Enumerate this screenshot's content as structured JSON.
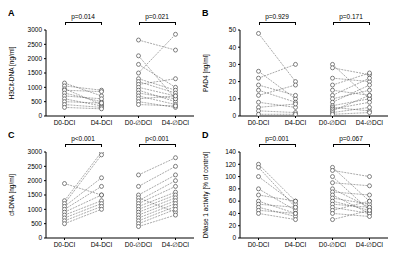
{
  "chart_data": [
    {
      "type": "paired_line",
      "title": "A",
      "y_label": "H3Cit-DNA [ng/ml]",
      "categories": [
        "D0-DCI",
        "D4-DCI",
        "D0-∅DCI",
        "D4-∅DCI"
      ],
      "ylim": [
        0,
        3000
      ],
      "yticks": [
        0,
        500,
        1000,
        1500,
        2000,
        2500,
        3000
      ],
      "annotations": [
        "p=0.014",
        "p=0.021"
      ],
      "marker": "open_circle",
      "line_style": "dashed",
      "series": [
        {
          "values": [
            1150,
            700,
            null,
            null
          ]
        },
        {
          "values": [
            1050,
            900,
            null,
            null
          ]
        },
        {
          "values": [
            950,
            400,
            null,
            null
          ]
        },
        {
          "values": [
            900,
            850,
            null,
            null
          ]
        },
        {
          "values": [
            800,
            500,
            null,
            null
          ]
        },
        {
          "values": [
            700,
            600,
            null,
            null
          ]
        },
        {
          "values": [
            600,
            350,
            null,
            null
          ]
        },
        {
          "values": [
            500,
            450,
            null,
            null
          ]
        },
        {
          "values": [
            400,
            300,
            null,
            null
          ]
        },
        {
          "values": [
            300,
            250,
            null,
            null
          ]
        },
        {
          "values": [
            null,
            null,
            2650,
            2300
          ]
        },
        {
          "values": [
            null,
            null,
            2100,
            600
          ]
        },
        {
          "values": [
            null,
            null,
            1800,
            1000
          ]
        },
        {
          "values": [
            null,
            null,
            1500,
            2850
          ]
        },
        {
          "values": [
            null,
            null,
            1300,
            900
          ]
        },
        {
          "values": [
            null,
            null,
            1200,
            800
          ]
        },
        {
          "values": [
            null,
            null,
            1100,
            1300
          ]
        },
        {
          "values": [
            null,
            null,
            1000,
            700
          ]
        },
        {
          "values": [
            null,
            null,
            900,
            500
          ]
        },
        {
          "values": [
            null,
            null,
            800,
            600
          ]
        },
        {
          "values": [
            null,
            null,
            700,
            400
          ]
        },
        {
          "values": [
            null,
            null,
            600,
            700
          ]
        },
        {
          "values": [
            null,
            null,
            500,
            300
          ]
        },
        {
          "values": [
            null,
            null,
            400,
            350
          ]
        }
      ]
    },
    {
      "type": "paired_line",
      "title": "B",
      "y_label": "PAD4 [ng/ml]",
      "categories": [
        "D0-DCI",
        "D4-DCI",
        "D0-∅DCI",
        "D4-∅DCI"
      ],
      "ylim": [
        0,
        50
      ],
      "yticks": [
        0,
        10,
        20,
        30,
        40,
        50
      ],
      "annotations": [
        "p=0.929",
        "p=0.171"
      ],
      "marker": "open_circle",
      "line_style": "dashed",
      "series": [
        {
          "values": [
            48,
            20,
            null,
            null
          ]
        },
        {
          "values": [
            26,
            10,
            null,
            null
          ]
        },
        {
          "values": [
            22,
            30,
            null,
            null
          ]
        },
        {
          "values": [
            18,
            12,
            null,
            null
          ]
        },
        {
          "values": [
            15,
            8,
            null,
            null
          ]
        },
        {
          "values": [
            12,
            18,
            null,
            null
          ]
        },
        {
          "values": [
            8,
            5,
            null,
            null
          ]
        },
        {
          "values": [
            5,
            7,
            null,
            null
          ]
        },
        {
          "values": [
            3,
            2,
            null,
            null
          ]
        },
        {
          "values": [
            1,
            1,
            null,
            null
          ]
        },
        {
          "values": [
            null,
            null,
            30,
            10
          ]
        },
        {
          "values": [
            null,
            null,
            28,
            24
          ]
        },
        {
          "values": [
            null,
            null,
            22,
            20
          ]
        },
        {
          "values": [
            null,
            null,
            18,
            25
          ]
        },
        {
          "values": [
            null,
            null,
            15,
            12
          ]
        },
        {
          "values": [
            null,
            null,
            12,
            22
          ]
        },
        {
          "values": [
            null,
            null,
            10,
            15
          ]
        },
        {
          "values": [
            null,
            null,
            8,
            18
          ]
        },
        {
          "values": [
            null,
            null,
            6,
            10
          ]
        },
        {
          "values": [
            null,
            null,
            5,
            3
          ]
        },
        {
          "values": [
            null,
            null,
            4,
            8
          ]
        },
        {
          "values": [
            null,
            null,
            3,
            12
          ]
        },
        {
          "values": [
            null,
            null,
            2,
            5
          ]
        },
        {
          "values": [
            null,
            null,
            1,
            2
          ]
        }
      ]
    },
    {
      "type": "paired_line",
      "title": "C",
      "y_label": "cf-DNA [ng/ml]",
      "categories": [
        "D0-DCI",
        "D4-DCI",
        "D0-∅DCI",
        "D4-∅DCI"
      ],
      "ylim": [
        0,
        3000
      ],
      "yticks": [
        0,
        500,
        1000,
        1500,
        2000,
        2500,
        3000
      ],
      "annotations": [
        "p<0.001",
        "p<0.001"
      ],
      "marker": "open_circle",
      "line_style": "dashed",
      "series": [
        {
          "values": [
            1900,
            1500,
            null,
            null
          ]
        },
        {
          "values": [
            1300,
            3000,
            null,
            null
          ]
        },
        {
          "values": [
            1200,
            2900,
            null,
            null
          ]
        },
        {
          "values": [
            1100,
            2100,
            null,
            null
          ]
        },
        {
          "values": [
            1000,
            1800,
            null,
            null
          ]
        },
        {
          "values": [
            900,
            1500,
            null,
            null
          ]
        },
        {
          "values": [
            800,
            1300,
            null,
            null
          ]
        },
        {
          "values": [
            700,
            1200,
            null,
            null
          ]
        },
        {
          "values": [
            600,
            1100,
            null,
            null
          ]
        },
        {
          "values": [
            500,
            1000,
            null,
            null
          ]
        },
        {
          "values": [
            null,
            null,
            2200,
            2800
          ]
        },
        {
          "values": [
            null,
            null,
            1800,
            2500
          ]
        },
        {
          "values": [
            null,
            null,
            1500,
            2200
          ]
        },
        {
          "values": [
            null,
            null,
            1400,
            900
          ]
        },
        {
          "values": [
            null,
            null,
            1300,
            2000
          ]
        },
        {
          "values": [
            null,
            null,
            1200,
            1800
          ]
        },
        {
          "values": [
            null,
            null,
            1100,
            1600
          ]
        },
        {
          "values": [
            null,
            null,
            1000,
            1500
          ]
        },
        {
          "values": [
            null,
            null,
            900,
            1400
          ]
        },
        {
          "values": [
            null,
            null,
            800,
            1300
          ]
        },
        {
          "values": [
            null,
            null,
            700,
            1200
          ]
        },
        {
          "values": [
            null,
            null,
            600,
            1100
          ]
        },
        {
          "values": [
            null,
            null,
            500,
            1000
          ]
        },
        {
          "values": [
            null,
            null,
            400,
            800
          ]
        }
      ]
    },
    {
      "type": "paired_line",
      "title": "D",
      "y_label": "DNase 1 activity [% of control]",
      "categories": [
        "D0-DCI",
        "D4-DCI",
        "D0-∅DCI",
        "D4-∅DCI"
      ],
      "ylim": [
        0,
        140
      ],
      "yticks": [
        0,
        20,
        40,
        60,
        80,
        100,
        120,
        140
      ],
      "annotations": [
        "p=0.001",
        "p=0.067"
      ],
      "marker": "open_circle",
      "line_style": "dashed",
      "series": [
        {
          "values": [
            120,
            60,
            null,
            null
          ]
        },
        {
          "values": [
            115,
            50,
            null,
            null
          ]
        },
        {
          "values": [
            100,
            55,
            null,
            null
          ]
        },
        {
          "values": [
            80,
            45,
            null,
            null
          ]
        },
        {
          "values": [
            70,
            60,
            null,
            null
          ]
        },
        {
          "values": [
            60,
            40,
            null,
            null
          ]
        },
        {
          "values": [
            55,
            50,
            null,
            null
          ]
        },
        {
          "values": [
            50,
            35,
            null,
            null
          ]
        },
        {
          "values": [
            45,
            40,
            null,
            null
          ]
        },
        {
          "values": [
            40,
            30,
            null,
            null
          ]
        },
        {
          "values": [
            null,
            null,
            115,
            60
          ]
        },
        {
          "values": [
            null,
            null,
            110,
            100
          ]
        },
        {
          "values": [
            null,
            null,
            100,
            45
          ]
        },
        {
          "values": [
            null,
            null,
            90,
            85
          ]
        },
        {
          "values": [
            null,
            null,
            80,
            50
          ]
        },
        {
          "values": [
            null,
            null,
            75,
            70
          ]
        },
        {
          "values": [
            null,
            null,
            70,
            40
          ]
        },
        {
          "values": [
            null,
            null,
            65,
            55
          ]
        },
        {
          "values": [
            null,
            null,
            60,
            45
          ]
        },
        {
          "values": [
            null,
            null,
            55,
            50
          ]
        },
        {
          "values": [
            null,
            null,
            50,
            40
          ]
        },
        {
          "values": [
            null,
            null,
            45,
            60
          ]
        },
        {
          "values": [
            null,
            null,
            40,
            35
          ]
        },
        {
          "values": [
            null,
            null,
            30,
            45
          ]
        }
      ]
    }
  ]
}
